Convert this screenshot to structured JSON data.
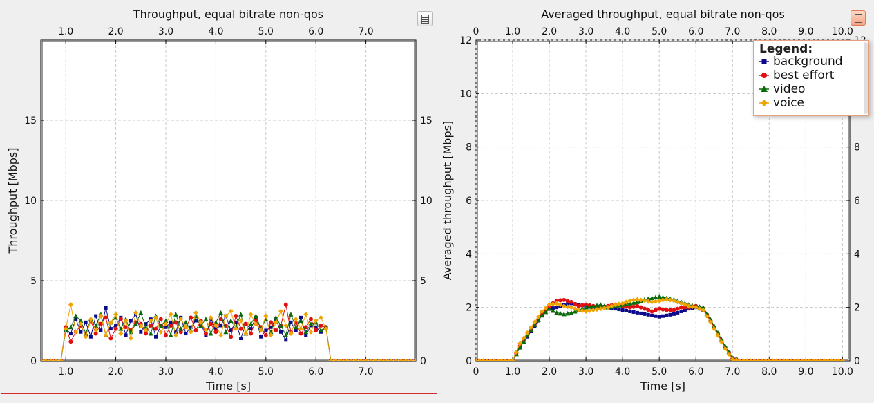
{
  "colors": {
    "background": "#0a0a8a",
    "best_effort": "#e01010",
    "video": "#0a6a0a",
    "voice": "#f0a400"
  },
  "left": {
    "menu_icon": "list-menu-icon",
    "chart_data": {
      "type": "line",
      "title": "Throughput, equal bitrate non-qos",
      "xlabel": "Time [s]",
      "ylabel": "Throughput [Mbps]",
      "xlim": [
        0.5,
        8.0
      ],
      "ylim": [
        0,
        20
      ],
      "x_ticks": [
        "1.0",
        "2.0",
        "3.0",
        "4.0",
        "5.0",
        "6.0",
        "7.0"
      ],
      "y_ticks": [
        "0",
        "5",
        "10",
        "15"
      ],
      "grid": true,
      "series": [
        {
          "name": "background",
          "marker": "square",
          "x": [
            1.0,
            1.1,
            1.2,
            1.3,
            1.4,
            1.5,
            1.6,
            1.7,
            1.8,
            1.9,
            2.0,
            2.1,
            2.2,
            2.3,
            2.4,
            2.5,
            2.6,
            2.7,
            2.8,
            2.9,
            3.0,
            3.1,
            3.2,
            3.3,
            3.4,
            3.5,
            3.6,
            3.7,
            3.8,
            3.9,
            4.0,
            4.1,
            4.2,
            4.3,
            4.4,
            4.5,
            4.6,
            4.7,
            4.8,
            4.9,
            5.0,
            5.1,
            5.2,
            5.3,
            5.4,
            5.5,
            5.6,
            5.7,
            5.8,
            5.9,
            6.0,
            6.1,
            6.2
          ],
          "y": [
            2.0,
            1.7,
            2.6,
            1.8,
            2.4,
            1.5,
            2.8,
            1.9,
            3.3,
            2.0,
            2.2,
            2.7,
            1.6,
            2.5,
            2.9,
            1.8,
            2.3,
            2.6,
            1.5,
            2.2,
            2.1,
            2.4,
            1.8,
            2.7,
            1.7,
            2.1,
            2.5,
            2.3,
            1.6,
            2.6,
            2.0,
            2.2,
            2.8,
            1.9,
            2.4,
            1.4,
            2.3,
            2.0,
            2.7,
            1.5,
            1.9,
            2.1,
            2.6,
            1.8,
            1.3,
            2.4,
            1.9,
            2.7,
            1.6,
            2.2,
            2.1,
            1.8,
            2.1
          ]
        },
        {
          "name": "best effort",
          "marker": "circle",
          "x": [
            1.0,
            1.1,
            1.2,
            1.3,
            1.4,
            1.5,
            1.6,
            1.7,
            1.8,
            1.9,
            2.0,
            2.1,
            2.2,
            2.3,
            2.4,
            2.5,
            2.6,
            2.7,
            2.8,
            2.9,
            3.0,
            3.1,
            3.2,
            3.3,
            3.4,
            3.5,
            3.6,
            3.7,
            3.8,
            3.9,
            4.0,
            4.1,
            4.2,
            4.3,
            4.4,
            4.5,
            4.6,
            4.7,
            4.8,
            4.9,
            5.0,
            5.1,
            5.2,
            5.3,
            5.4,
            5.5,
            5.6,
            5.7,
            5.8,
            5.9,
            6.0,
            6.1,
            6.2
          ],
          "y": [
            2.1,
            1.2,
            1.8,
            2.2,
            1.6,
            2.5,
            1.7,
            2.3,
            2.7,
            1.4,
            2.0,
            2.6,
            2.1,
            1.9,
            2.4,
            2.3,
            1.7,
            2.2,
            2.0,
            2.6,
            1.6,
            2.2,
            2.4,
            1.8,
            2.1,
            2.7,
            1.9,
            2.5,
            1.7,
            2.3,
            1.8,
            2.6,
            2.2,
            1.5,
            2.8,
            2.0,
            2.3,
            1.7,
            2.5,
            2.1,
            1.6,
            2.4,
            1.9,
            2.2,
            3.5,
            1.8,
            2.4,
            1.7,
            2.1,
            2.6,
            1.9,
            2.2,
            2.1
          ]
        },
        {
          "name": "video",
          "marker": "triangle",
          "x": [
            1.0,
            1.1,
            1.2,
            1.3,
            1.4,
            1.5,
            1.6,
            1.7,
            1.8,
            1.9,
            2.0,
            2.1,
            2.2,
            2.3,
            2.4,
            2.5,
            2.6,
            2.7,
            2.8,
            2.9,
            3.0,
            3.1,
            3.2,
            3.3,
            3.4,
            3.5,
            3.6,
            3.7,
            3.8,
            3.9,
            4.0,
            4.1,
            4.2,
            4.3,
            4.4,
            4.5,
            4.6,
            4.7,
            4.8,
            4.9,
            5.0,
            5.1,
            5.2,
            5.3,
            5.4,
            5.5,
            5.6,
            5.7,
            5.8,
            5.9,
            6.0,
            6.1,
            6.2
          ],
          "y": [
            1.9,
            2.1,
            2.8,
            2.5,
            1.7,
            2.6,
            2.2,
            2.9,
            1.6,
            2.4,
            2.7,
            2.0,
            2.6,
            1.8,
            2.3,
            3.0,
            2.1,
            1.7,
            2.8,
            2.2,
            2.5,
            1.6,
            2.9,
            2.0,
            2.4,
            1.9,
            2.8,
            2.2,
            2.6,
            1.7,
            2.4,
            3.0,
            1.8,
            2.5,
            2.1,
            2.9,
            1.7,
            2.3,
            2.8,
            2.0,
            2.6,
            1.8,
            2.7,
            2.2,
            1.6,
            2.9,
            2.1,
            2.5,
            1.8,
            2.3,
            2.4,
            1.9,
            2.1
          ]
        },
        {
          "name": "voice",
          "marker": "diamond",
          "x": [
            1.0,
            1.1,
            1.2,
            1.3,
            1.4,
            1.5,
            1.6,
            1.7,
            1.8,
            1.9,
            2.0,
            2.1,
            2.2,
            2.3,
            2.4,
            2.5,
            2.6,
            2.7,
            2.8,
            2.9,
            3.0,
            3.1,
            3.2,
            3.3,
            3.4,
            3.5,
            3.6,
            3.7,
            3.8,
            3.9,
            4.0,
            4.1,
            4.2,
            4.3,
            4.4,
            4.5,
            4.6,
            4.7,
            4.8,
            4.9,
            5.0,
            5.1,
            5.2,
            5.3,
            5.4,
            5.5,
            5.6,
            5.7,
            5.8,
            5.9,
            6.0,
            6.1,
            6.2
          ],
          "y": [
            2.0,
            3.5,
            1.8,
            2.3,
            1.5,
            2.6,
            1.9,
            2.8,
            1.6,
            2.4,
            2.9,
            1.7,
            2.5,
            1.4,
            3.0,
            2.2,
            1.9,
            2.5,
            2.7,
            1.8,
            2.3,
            2.9,
            1.6,
            2.6,
            2.1,
            1.8,
            3.0,
            2.4,
            1.9,
            2.7,
            2.2,
            1.6,
            2.8,
            3.1,
            2.0,
            2.5,
            1.7,
            2.9,
            2.3,
            1.9,
            2.8,
            1.6,
            2.4,
            3.1,
            2.2,
            1.7,
            2.6,
            2.0,
            2.9,
            1.8,
            2.5,
            2.7,
            2.0
          ]
        }
      ]
    }
  },
  "right": {
    "menu_icon": "list-menu-icon",
    "legend": {
      "title": "Legend:",
      "items": [
        "background",
        "best effort",
        "video",
        "voice"
      ]
    },
    "chart_data": {
      "type": "line",
      "title": "Averaged throughput, equal bitrate non-qos",
      "xlabel": "Time [s]",
      "ylabel": "Averaged throughput [Mbps]",
      "xlim": [
        0,
        10.2
      ],
      "ylim": [
        0,
        12
      ],
      "x_ticks_bottom": [
        "0",
        "1.0",
        "2.0",
        "3.0",
        "4.0",
        "5.0",
        "6.0",
        "7.0",
        "8.0",
        "9.0",
        "10.0"
      ],
      "x_ticks_top": [
        "0",
        "1.0",
        "2.0",
        "3.0",
        "4.0",
        "5.0",
        "6.0",
        "7.0",
        "8.0",
        "9.0",
        "10.0"
      ],
      "y_ticks": [
        "0",
        "2",
        "4",
        "6",
        "8",
        "10",
        "12"
      ],
      "grid": true,
      "legend_position": "top-right",
      "series": [
        {
          "name": "background",
          "marker": "square",
          "x": [
            0,
            1.0,
            1.2,
            1.4,
            1.6,
            1.8,
            2.0,
            2.2,
            2.4,
            2.6,
            2.8,
            3.0,
            3.2,
            3.4,
            3.6,
            3.8,
            4.0,
            4.2,
            4.4,
            4.6,
            4.8,
            5.0,
            5.2,
            5.4,
            5.6,
            5.8,
            6.0,
            6.2,
            6.4,
            6.6,
            6.8,
            7.0,
            7.2,
            8.0,
            9.0,
            10.0
          ],
          "y": [
            0,
            0,
            0.5,
            0.9,
            1.3,
            1.7,
            1.95,
            2.0,
            2.1,
            2.15,
            2.1,
            2.05,
            2.0,
            2.05,
            2.0,
            1.95,
            1.9,
            1.85,
            1.8,
            1.75,
            1.7,
            1.65,
            1.7,
            1.75,
            1.85,
            1.95,
            2.0,
            1.9,
            1.5,
            1.0,
            0.5,
            0.1,
            0,
            0,
            0,
            0
          ]
        },
        {
          "name": "best effort",
          "marker": "circle",
          "x": [
            0,
            1.0,
            1.2,
            1.4,
            1.6,
            1.8,
            2.0,
            2.2,
            2.4,
            2.6,
            2.8,
            3.0,
            3.2,
            3.4,
            3.6,
            3.8,
            4.0,
            4.2,
            4.4,
            4.6,
            4.8,
            5.0,
            5.2,
            5.4,
            5.6,
            5.8,
            6.0,
            6.2,
            6.4,
            6.6,
            6.8,
            7.0,
            7.2,
            8.0,
            9.0,
            10.0
          ],
          "y": [
            0,
            0,
            0.55,
            0.95,
            1.35,
            1.75,
            2.05,
            2.25,
            2.28,
            2.2,
            2.05,
            2.1,
            2.05,
            2.0,
            2.05,
            2.1,
            2.05,
            2.0,
            2.05,
            1.95,
            1.85,
            1.95,
            1.9,
            1.9,
            2.0,
            2.0,
            2.05,
            1.95,
            1.5,
            1.0,
            0.5,
            0.1,
            0,
            0,
            0,
            0
          ]
        },
        {
          "name": "video",
          "marker": "triangle",
          "x": [
            0,
            1.0,
            1.2,
            1.4,
            1.6,
            1.8,
            2.0,
            2.2,
            2.4,
            2.6,
            2.8,
            3.0,
            3.2,
            3.4,
            3.6,
            3.8,
            4.0,
            4.2,
            4.4,
            4.6,
            4.8,
            5.0,
            5.2,
            5.4,
            5.6,
            5.8,
            6.0,
            6.2,
            6.4,
            6.6,
            6.8,
            7.0,
            7.2,
            8.0,
            9.0,
            10.0
          ],
          "y": [
            0,
            0,
            0.5,
            0.95,
            1.35,
            1.7,
            1.95,
            1.8,
            1.75,
            1.8,
            1.9,
            2.0,
            2.05,
            2.1,
            2.0,
            2.05,
            2.1,
            2.15,
            2.2,
            2.3,
            2.35,
            2.4,
            2.35,
            2.3,
            2.2,
            2.1,
            2.05,
            2.0,
            1.55,
            1.05,
            0.55,
            0.1,
            0,
            0,
            0,
            0
          ]
        },
        {
          "name": "voice",
          "marker": "diamond",
          "x": [
            0,
            1.0,
            1.2,
            1.4,
            1.6,
            1.8,
            2.0,
            2.2,
            2.4,
            2.6,
            2.8,
            3.0,
            3.2,
            3.4,
            3.6,
            3.8,
            4.0,
            4.2,
            4.4,
            4.6,
            4.8,
            5.0,
            5.2,
            5.4,
            5.6,
            5.8,
            6.0,
            6.2,
            6.4,
            6.6,
            6.8,
            7.0,
            7.2,
            8.0,
            9.0,
            10.0
          ],
          "y": [
            0,
            0,
            0.65,
            1.05,
            1.45,
            1.85,
            2.1,
            2.15,
            2.05,
            2.0,
            1.9,
            1.85,
            1.9,
            1.95,
            2.0,
            2.1,
            2.15,
            2.25,
            2.3,
            2.25,
            2.2,
            2.25,
            2.3,
            2.25,
            2.15,
            2.05,
            2.0,
            1.9,
            1.45,
            0.95,
            0.45,
            0.05,
            0,
            0,
            0,
            0
          ]
        }
      ]
    }
  }
}
